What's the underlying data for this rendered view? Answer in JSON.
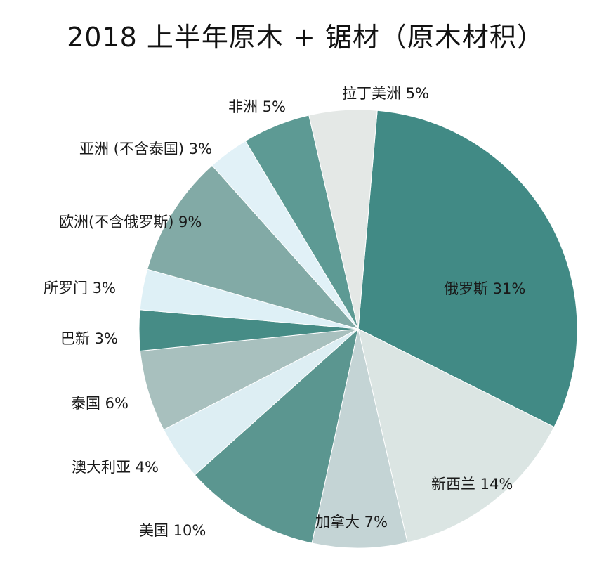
{
  "title": "2018 上半年原木 + 锯材（原木材积）",
  "chart_data": {
    "type": "pie",
    "title": "2018 上半年原木 + 锯材（原木材积）",
    "unit": "%",
    "slices": [
      {
        "name": "俄罗斯",
        "value": 31,
        "label": "俄罗斯  31%",
        "color": "#418a85"
      },
      {
        "name": "新西兰",
        "value": 14,
        "label": "新西兰  14%",
        "color": "#dbe5e3"
      },
      {
        "name": "加拿大",
        "value": 7,
        "label": "加拿大  7%",
        "color": "#c4d4d5"
      },
      {
        "name": "美国",
        "value": 10,
        "label": "美国  10%",
        "color": "#5b9690"
      },
      {
        "name": "澳大利亚",
        "value": 4,
        "label": "澳大利亚  4%",
        "color": "#ddeef3"
      },
      {
        "name": "泰国",
        "value": 6,
        "label": "泰国  6%",
        "color": "#a8c0be"
      },
      {
        "name": "巴新",
        "value": 3,
        "label": "巴新  3%",
        "color": "#468c86"
      },
      {
        "name": "所罗门",
        "value": 3,
        "label": "所罗门  3%",
        "color": "#def0f6"
      },
      {
        "name": "欧洲(不含俄罗斯)",
        "value": 9,
        "label": "欧洲(不含俄罗斯)  9%",
        "color": "#82aaa6"
      },
      {
        "name": "亚洲(不含泰国)",
        "value": 3,
        "label": "亚洲 (不含泰国)  3%",
        "color": "#e1f1f7"
      },
      {
        "name": "非洲",
        "value": 5,
        "label": "非洲  5%",
        "color": "#5d9a94"
      },
      {
        "name": "拉丁美洲",
        "value": 5,
        "label": "拉丁美洲  5%",
        "color": "#e4e8e6"
      }
    ]
  }
}
